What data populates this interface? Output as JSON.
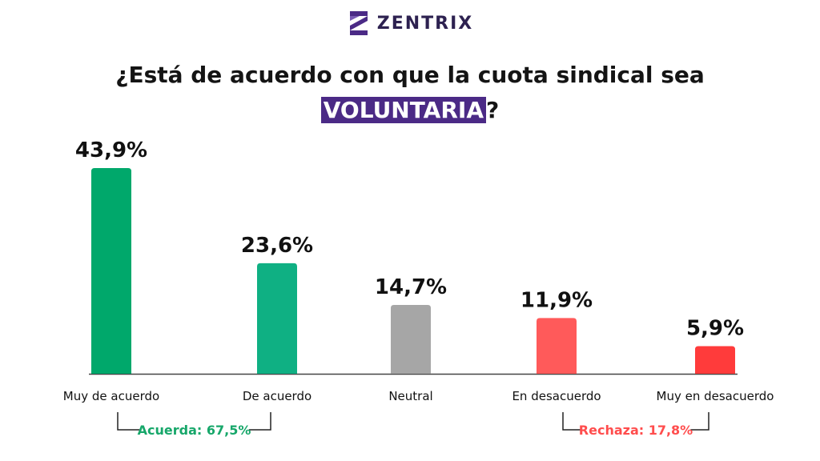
{
  "logo": {
    "name": "ZENTRIX",
    "icon": "zentrix-logo-icon",
    "color": "#4b2a86"
  },
  "title": {
    "line1": "¿Está de acuerdo con que la cuota sindical sea",
    "highlight": "VOLUNTARIA",
    "suffix": "?",
    "highlight_color": "#4b2a86"
  },
  "chart_data": {
    "type": "bar",
    "categories": [
      "Muy de acuerdo",
      "De acuerdo",
      "Neutral",
      "En desacuerdo",
      "Muy en desacuerdo"
    ],
    "values": [
      43.9,
      23.6,
      14.7,
      11.9,
      5.9
    ],
    "value_labels": [
      "43,9%",
      "23,6%",
      "14,7%",
      "11,9%",
      "5,9%"
    ],
    "colors": [
      "#00a86b",
      "#0fb083",
      "#a6a6a6",
      "#ff5a5a",
      "#ff3b3b"
    ],
    "ylim": [
      0,
      45
    ],
    "grid": false,
    "groups": [
      {
        "label": "Acuerda: 67,5%",
        "from": 0,
        "to": 1,
        "color": "#17a76a"
      },
      {
        "label": "Rechaza: 17,8%",
        "from": 3,
        "to": 4,
        "color": "#ff4d4d"
      }
    ]
  }
}
